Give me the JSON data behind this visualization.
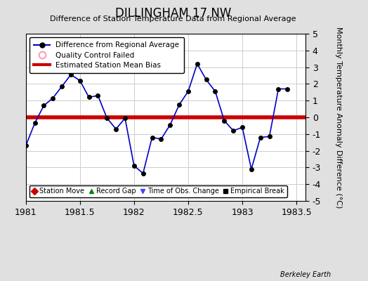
{
  "title": "DILLINGHAM 17 NW",
  "subtitle": "Difference of Station Temperature Data from Regional Average",
  "ylabel": "Monthly Temperature Anomaly Difference (°C)",
  "credit": "Berkeley Earth",
  "xlim": [
    1981.0,
    1983.583
  ],
  "ylim": [
    -5,
    5
  ],
  "bias_value": 0.0,
  "background_color": "#e0e0e0",
  "plot_bg_color": "#ffffff",
  "xticks": [
    1981,
    1981.5,
    1982,
    1982.5,
    1983,
    1983.5
  ],
  "yticks": [
    -5,
    -4,
    -3,
    -2,
    -1,
    0,
    1,
    2,
    3,
    4,
    5
  ],
  "x": [
    1981.0,
    1981.0833,
    1981.1667,
    1981.25,
    1981.3333,
    1981.4167,
    1981.5,
    1981.5833,
    1981.6667,
    1981.75,
    1981.8333,
    1981.9167,
    1982.0,
    1982.0833,
    1982.1667,
    1982.25,
    1982.3333,
    1982.4167,
    1982.5,
    1982.5833,
    1982.6667,
    1982.75,
    1982.8333,
    1982.9167,
    1983.0,
    1983.0833,
    1983.1667,
    1983.25,
    1983.3333,
    1983.4167
  ],
  "y": [
    -1.7,
    -0.35,
    0.7,
    1.15,
    1.85,
    2.55,
    2.2,
    1.2,
    1.3,
    -0.05,
    -0.7,
    -0.05,
    -2.9,
    -3.35,
    -1.2,
    -1.3,
    -0.45,
    0.75,
    1.55,
    3.2,
    2.25,
    1.55,
    -0.2,
    -0.8,
    -0.6,
    -3.1,
    -1.2,
    -1.15,
    1.7,
    1.7
  ],
  "line_color": "#0000cc",
  "marker_color": "#000000",
  "marker_size": 18,
  "bias_color": "#cc0000",
  "bias_linewidth": 4,
  "grid_color": "#cccccc",
  "legend_label_1": "Difference from Regional Average",
  "legend_label_2": "Quality Control Failed",
  "legend_label_3": "Estimated Station Mean Bias",
  "bottom_legend": [
    {
      "label": "Station Move",
      "color": "#cc0000",
      "marker": "D"
    },
    {
      "label": "Record Gap",
      "color": "#008800",
      "marker": "^"
    },
    {
      "label": "Time of Obs. Change",
      "color": "#4444ff",
      "marker": "v"
    },
    {
      "label": "Empirical Break",
      "color": "#000000",
      "marker": "s"
    }
  ],
  "title_fontsize": 12,
  "subtitle_fontsize": 8,
  "tick_fontsize": 9,
  "ylabel_fontsize": 8
}
